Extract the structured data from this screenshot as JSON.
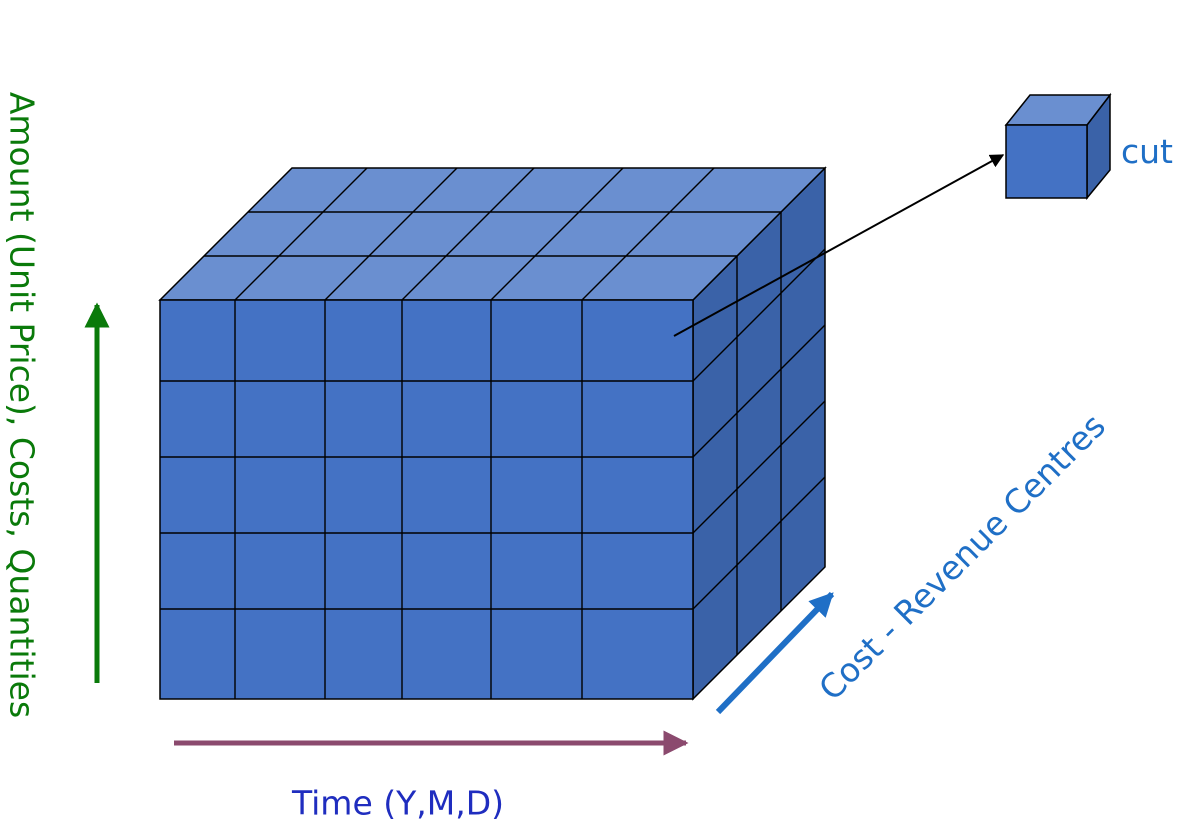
{
  "labels": {
    "vertical_axis": "Amount (Unit Price), Costs, Quantities",
    "horizontal_axis": "Time (Y,M,D)",
    "depth_axis": "Cost - Revenue Centres",
    "cut": "cut"
  },
  "grid": {
    "columns": 6,
    "rows": 5,
    "depth_layers": 3
  },
  "colors": {
    "front_face": "#4472C4",
    "top_face": "#6A8FD0",
    "side_face": "#3A62A8",
    "vertical_arrow": "#0A7A0A",
    "horizontal_arrow": "#8B4A6E",
    "depth_arrow": "#1F6FC6",
    "text_vertical": "#0A7A0A",
    "text_horizontal": "#1F2DBF",
    "text_depth": "#1F6FC6",
    "text_cut": "#1F6FC6"
  },
  "icons": [
    "data-cube",
    "cut-cube",
    "pointer-arrow"
  ]
}
